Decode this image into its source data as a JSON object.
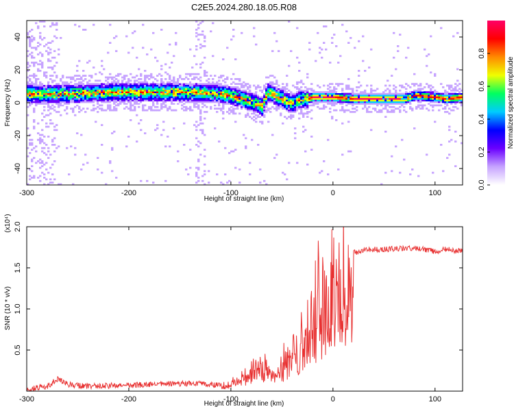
{
  "title": "C2E5.2024.280.18.05.R08",
  "chart_data": [
    {
      "type": "heatmap",
      "xlabel": "Height of straight line (km)",
      "ylabel": "Frequency (Hz)",
      "xlim": [
        -300,
        127
      ],
      "ylim": [
        -50,
        50
      ],
      "x_ticks": [
        "-300",
        "-200",
        "-100",
        "0",
        "100"
      ],
      "y_ticks": [
        "-40",
        "-20",
        "0",
        "20",
        "40"
      ],
      "colorbar": {
        "label": "Normalized spectral amplitude",
        "ticks": [
          "0.0",
          "0.2",
          "0.4",
          "0.6",
          "0.8"
        ],
        "colors": [
          "#ffffff",
          "#c6a3ff",
          "#6a00ff",
          "#0000ff",
          "#00ccff",
          "#00ff60",
          "#f0ff00",
          "#ff8a00",
          "#ff0000",
          "#ff0066"
        ]
      },
      "ridge": {
        "x": [
          -300,
          -260,
          -220,
          -180,
          -140,
          -110,
          -95,
          -85,
          -75,
          -70,
          -65,
          -60,
          -55,
          -50,
          -45,
          -40,
          -35,
          -30,
          -25,
          -20,
          -10,
          0,
          20,
          50,
          70,
          80,
          100,
          110,
          127
        ],
        "y": [
          5,
          5,
          6,
          6,
          6,
          5,
          3,
          1,
          -1,
          -3,
          6,
          5,
          3,
          2,
          0,
          -1,
          1,
          2,
          2,
          3,
          3,
          3,
          2,
          2,
          2,
          4,
          3,
          2,
          3
        ]
      }
    },
    {
      "type": "line",
      "xlabel": "Height of straight line (km)",
      "ylabel": "SNR (10 * v/v)",
      "y_multiplier": "(x10⁴)",
      "xlim": [
        -300,
        127
      ],
      "ylim": [
        0,
        20000
      ],
      "x_ticks": [
        "-300",
        "-200",
        "-100",
        "0",
        "100"
      ],
      "y_ticks": [
        "0.5",
        "1.0",
        "1.5",
        "2.0"
      ],
      "series": [
        {
          "color": "#e83030",
          "x": [
            -300,
            -280,
            -270,
            -260,
            -240,
            -200,
            -160,
            -130,
            -110,
            -100,
            -90,
            -80,
            -70,
            -60,
            -50,
            -40,
            -30,
            -20,
            -15,
            -10,
            -5,
            0,
            10,
            20,
            30,
            60,
            80,
            100,
            110,
            120,
            127
          ],
          "y": [
            300,
            500,
            1500,
            800,
            600,
            700,
            900,
            900,
            700,
            1000,
            1800,
            2500,
            3500,
            2500,
            3500,
            5000,
            7000,
            9000,
            12000,
            11000,
            12000,
            13500,
            15500,
            16800,
            17200,
            17300,
            17400,
            17000,
            17300,
            17000,
            17200
          ]
        }
      ]
    }
  ]
}
